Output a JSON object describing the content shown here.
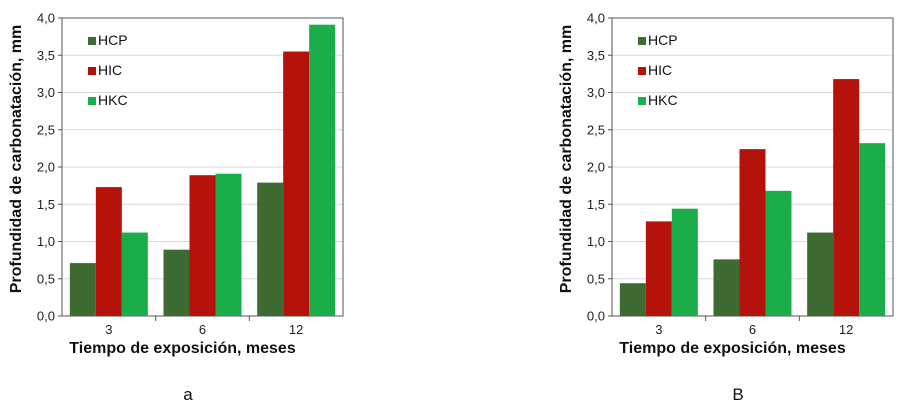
{
  "chart_data": [
    {
      "type": "bar",
      "panel_label": "a",
      "categories": [
        "3",
        "6",
        "12"
      ],
      "series": [
        {
          "name": "HCP",
          "color": "#3d6b32",
          "values": [
            0.71,
            0.89,
            1.79
          ]
        },
        {
          "name": "HIC",
          "color": "#b5120b",
          "values": [
            1.73,
            1.89,
            3.55
          ]
        },
        {
          "name": "HKC",
          "color": "#1aad4a",
          "values": [
            1.12,
            1.91,
            3.91
          ]
        }
      ],
      "xlabel": "Tiempo de exposición, meses",
      "ylabel": "Profundidad de carbonatación, mm",
      "ylim": [
        0,
        4.0
      ],
      "yticks": [
        "0,0",
        "0,5",
        "1,0",
        "1,5",
        "2,0",
        "2,5",
        "3,0",
        "3,5",
        "4,0"
      ],
      "grid": true,
      "legend": "top-left"
    },
    {
      "type": "bar",
      "panel_label": "B",
      "categories": [
        "3",
        "6",
        "12"
      ],
      "series": [
        {
          "name": "HCP",
          "color": "#3d6b32",
          "values": [
            0.44,
            0.76,
            1.12
          ]
        },
        {
          "name": "HIC",
          "color": "#b5120b",
          "values": [
            1.27,
            2.24,
            3.18
          ]
        },
        {
          "name": "HKC",
          "color": "#1aad4a",
          "values": [
            1.44,
            1.68,
            2.32
          ]
        }
      ],
      "xlabel": "Tiempo de exposición, meses",
      "ylabel": "Profundidad de carbonatación, mm",
      "ylim": [
        0,
        4.0
      ],
      "yticks": [
        "0,0",
        "0,5",
        "1,0",
        "1,5",
        "2,0",
        "2,5",
        "3,0",
        "3,5",
        "4,0"
      ],
      "grid": true,
      "legend": "top-left"
    }
  ]
}
